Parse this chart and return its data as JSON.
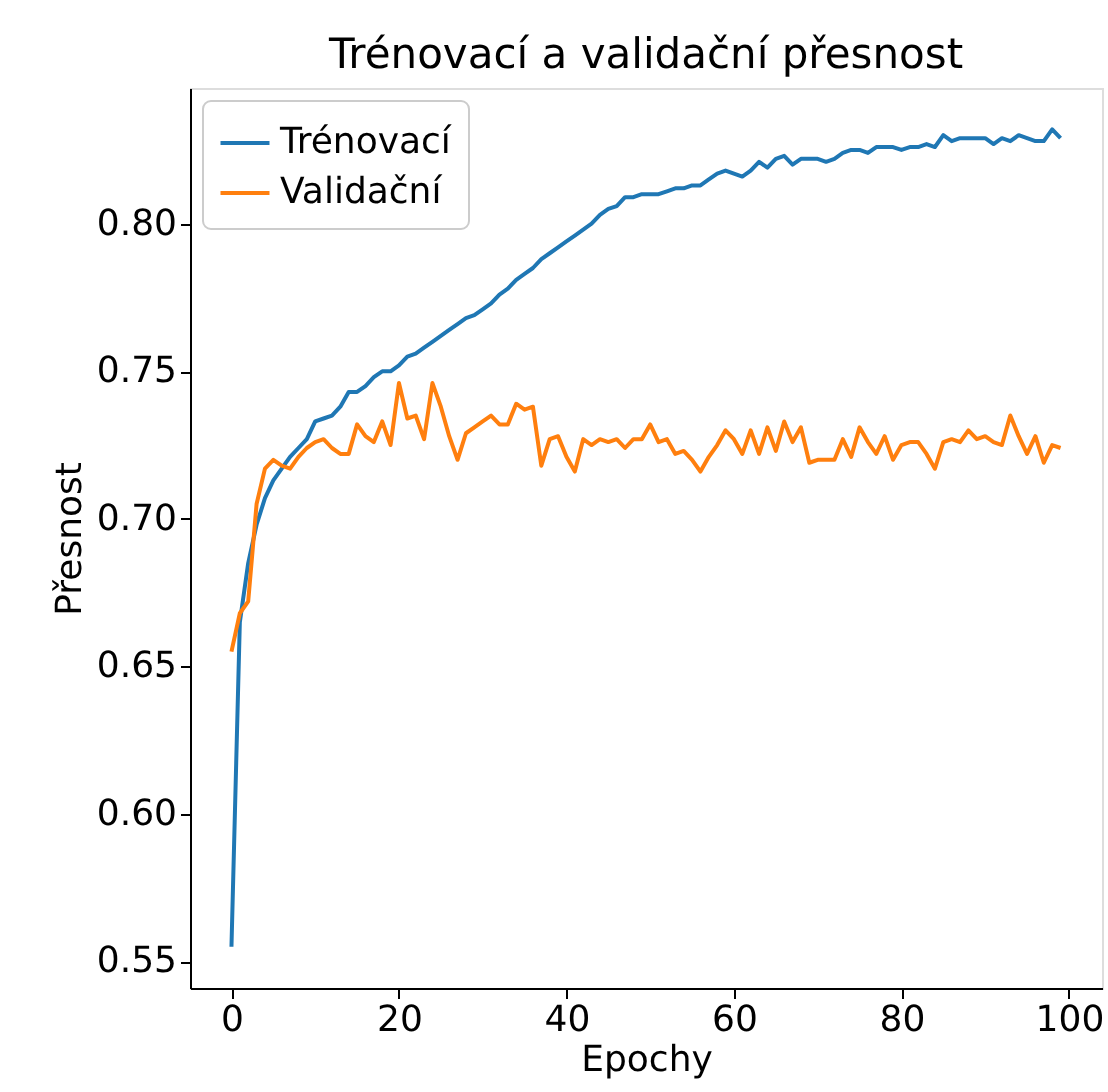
{
  "chart_data": {
    "type": "line",
    "title": "Trénovací a validační přesnost",
    "xlabel": "Epochy",
    "ylabel": "Přesnost",
    "x": [
      0,
      1,
      2,
      3,
      4,
      5,
      6,
      7,
      8,
      9,
      10,
      11,
      12,
      13,
      14,
      15,
      16,
      17,
      18,
      19,
      20,
      21,
      22,
      23,
      24,
      25,
      26,
      27,
      28,
      29,
      30,
      31,
      32,
      33,
      34,
      35,
      36,
      37,
      38,
      39,
      40,
      41,
      42,
      43,
      44,
      45,
      46,
      47,
      48,
      49,
      50,
      51,
      52,
      53,
      54,
      55,
      56,
      57,
      58,
      59,
      60,
      61,
      62,
      63,
      64,
      65,
      66,
      67,
      68,
      69,
      70,
      71,
      72,
      73,
      74,
      75,
      76,
      77,
      78,
      79,
      80,
      81,
      82,
      83,
      84,
      85,
      86,
      87,
      88,
      89,
      90,
      91,
      92,
      93,
      94,
      95,
      96,
      97,
      98,
      99
    ],
    "series": [
      {
        "name": "Trénovací",
        "color": "#1f77b4",
        "values": [
          0.555,
          0.665,
          0.685,
          0.698,
          0.707,
          0.713,
          0.717,
          0.721,
          0.724,
          0.727,
          0.733,
          0.734,
          0.735,
          0.738,
          0.743,
          0.743,
          0.745,
          0.748,
          0.75,
          0.75,
          0.752,
          0.755,
          0.756,
          0.758,
          0.76,
          0.762,
          0.764,
          0.766,
          0.768,
          0.769,
          0.771,
          0.773,
          0.776,
          0.778,
          0.781,
          0.783,
          0.785,
          0.788,
          0.79,
          0.792,
          0.794,
          0.796,
          0.798,
          0.8,
          0.803,
          0.805,
          0.806,
          0.809,
          0.809,
          0.81,
          0.81,
          0.81,
          0.811,
          0.812,
          0.812,
          0.813,
          0.813,
          0.815,
          0.817,
          0.818,
          0.817,
          0.816,
          0.818,
          0.821,
          0.819,
          0.822,
          0.823,
          0.82,
          0.822,
          0.822,
          0.822,
          0.821,
          0.822,
          0.824,
          0.825,
          0.825,
          0.824,
          0.826,
          0.826,
          0.826,
          0.825,
          0.826,
          0.826,
          0.827,
          0.826,
          0.83,
          0.828,
          0.829,
          0.829,
          0.829,
          0.829,
          0.827,
          0.829,
          0.828,
          0.83,
          0.829,
          0.828,
          0.828,
          0.832,
          0.829
        ]
      },
      {
        "name": "Validační",
        "color": "#ff7f0e",
        "values": [
          0.655,
          0.668,
          0.672,
          0.705,
          0.717,
          0.72,
          0.718,
          0.717,
          0.721,
          0.724,
          0.726,
          0.727,
          0.724,
          0.722,
          0.722,
          0.732,
          0.728,
          0.726,
          0.733,
          0.725,
          0.746,
          0.734,
          0.735,
          0.727,
          0.746,
          0.738,
          0.728,
          0.72,
          0.729,
          0.731,
          0.733,
          0.735,
          0.732,
          0.732,
          0.739,
          0.737,
          0.738,
          0.718,
          0.727,
          0.728,
          0.721,
          0.716,
          0.727,
          0.725,
          0.727,
          0.726,
          0.727,
          0.724,
          0.727,
          0.727,
          0.732,
          0.726,
          0.727,
          0.722,
          0.723,
          0.72,
          0.716,
          0.721,
          0.725,
          0.73,
          0.727,
          0.722,
          0.73,
          0.722,
          0.731,
          0.723,
          0.733,
          0.726,
          0.731,
          0.719,
          0.72,
          0.72,
          0.72,
          0.727,
          0.721,
          0.731,
          0.726,
          0.722,
          0.728,
          0.72,
          0.725,
          0.726,
          0.726,
          0.722,
          0.717,
          0.726,
          0.727,
          0.726,
          0.73,
          0.727,
          0.728,
          0.726,
          0.725,
          0.735,
          0.728,
          0.722,
          0.728,
          0.719,
          0.725,
          0.724
        ]
      }
    ],
    "xlim": [
      -4.95,
      103.95
    ],
    "xticks": [
      0,
      20,
      40,
      60,
      80,
      100
    ],
    "ylim": [
      0.541,
      0.846
    ],
    "yticks": [
      {
        "value": 0.55,
        "label": "0.55"
      },
      {
        "value": 0.6,
        "label": "0.60"
      },
      {
        "value": 0.65,
        "label": "0.65"
      },
      {
        "value": 0.7,
        "label": "0.70"
      },
      {
        "value": 0.75,
        "label": "0.75"
      },
      {
        "value": 0.8,
        "label": "0.80"
      }
    ],
    "legend": "top left",
    "grid": false,
    "marker": "none",
    "line_style": "solid"
  }
}
